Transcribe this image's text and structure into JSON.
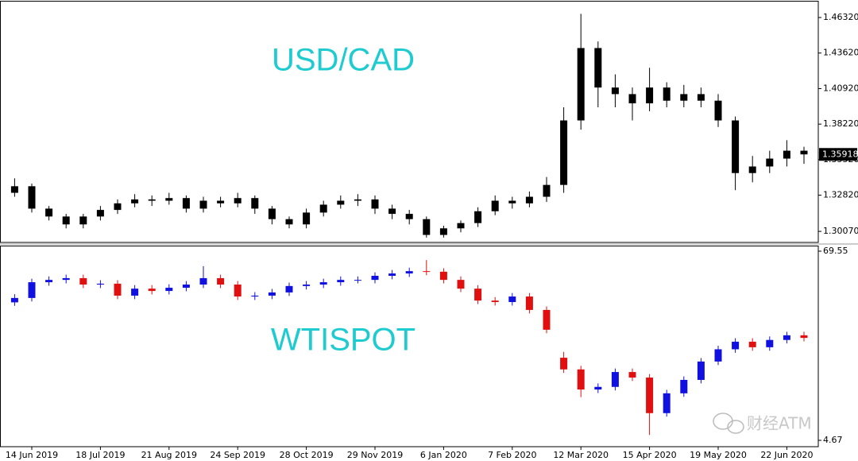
{
  "chart_data": {
    "type": "candlestick",
    "categories": [
      null,
      "14 Jun 2019",
      null,
      null,
      null,
      "18 Jul 2019",
      null,
      null,
      null,
      "21 Aug 2019",
      null,
      null,
      null,
      "24 Sep 2019",
      null,
      null,
      null,
      "28 Oct 2019",
      null,
      null,
      null,
      "29 Nov 2019",
      null,
      null,
      null,
      "6 Jan 2020",
      null,
      null,
      null,
      "7 Feb 2020",
      null,
      null,
      null,
      "12 Mar 2020",
      null,
      null,
      null,
      "15 Apr 2020",
      null,
      null,
      null,
      "19 May 2020",
      null,
      null,
      null,
      "22 Jun 2020",
      null
    ],
    "watermark": "财经ATM",
    "panels": [
      {
        "title": "USD/CAD",
        "title_color": "#1ecbd0",
        "up_color": "#000000",
        "down_color": "#000000",
        "ylim": [
          1.2923,
          1.4753
        ],
        "yticks": [
          {
            "value": 1.4632,
            "label": "1.46320"
          },
          {
            "value": 1.4362,
            "label": "1.43620"
          },
          {
            "value": 1.4092,
            "label": "1.40920"
          },
          {
            "value": 1.3822,
            "label": "1.38220"
          },
          {
            "value": 1.3552,
            "label": "1.35520"
          },
          {
            "value": 1.3282,
            "label": "1.32820"
          },
          {
            "value": 1.3007,
            "label": "1.30070"
          }
        ],
        "price_label": {
          "value": 1.35918,
          "label": "1.35918"
        },
        "open": [
          1.33,
          1.335,
          1.318,
          1.312,
          1.306,
          1.312,
          1.317,
          1.322,
          1.325,
          1.324,
          1.326,
          1.318,
          1.324,
          1.322,
          1.326,
          1.318,
          1.31,
          1.306,
          1.315,
          1.321,
          1.324,
          1.325,
          1.318,
          1.314,
          1.31,
          1.298,
          1.303,
          1.307,
          1.316,
          1.324,
          1.322,
          1.327,
          1.336,
          1.385,
          1.44,
          1.41,
          1.405,
          1.398,
          1.41,
          1.4,
          1.405,
          1.4,
          1.385,
          1.345,
          1.35,
          1.356,
          1.362
        ],
        "high": [
          1.341,
          1.337,
          1.32,
          1.314,
          1.314,
          1.32,
          1.325,
          1.329,
          1.328,
          1.33,
          1.328,
          1.327,
          1.327,
          1.33,
          1.328,
          1.32,
          1.312,
          1.318,
          1.324,
          1.328,
          1.329,
          1.328,
          1.321,
          1.317,
          1.312,
          1.305,
          1.309,
          1.319,
          1.328,
          1.327,
          1.331,
          1.342,
          1.395,
          1.466,
          1.445,
          1.42,
          1.41,
          1.425,
          1.414,
          1.412,
          1.41,
          1.405,
          1.388,
          1.358,
          1.362,
          1.37,
          1.365
        ],
        "low": [
          1.327,
          1.315,
          1.309,
          1.303,
          1.303,
          1.309,
          1.314,
          1.319,
          1.32,
          1.321,
          1.315,
          1.315,
          1.319,
          1.319,
          1.314,
          1.306,
          1.303,
          1.303,
          1.312,
          1.318,
          1.32,
          1.314,
          1.31,
          1.306,
          1.296,
          1.296,
          1.3,
          1.304,
          1.313,
          1.318,
          1.319,
          1.323,
          1.33,
          1.378,
          1.395,
          1.395,
          1.385,
          1.392,
          1.395,
          1.395,
          1.395,
          1.38,
          1.332,
          1.338,
          1.345,
          1.35,
          1.352
        ],
        "close": [
          1.335,
          1.318,
          1.312,
          1.306,
          1.312,
          1.317,
          1.322,
          1.325,
          1.324,
          1.326,
          1.318,
          1.324,
          1.322,
          1.326,
          1.318,
          1.31,
          1.306,
          1.315,
          1.321,
          1.324,
          1.325,
          1.318,
          1.314,
          1.31,
          1.298,
          1.303,
          1.307,
          1.316,
          1.324,
          1.322,
          1.327,
          1.336,
          1.385,
          1.44,
          1.41,
          1.405,
          1.398,
          1.41,
          1.4,
          1.405,
          1.4,
          1.385,
          1.345,
          1.35,
          1.356,
          1.362,
          1.3592
        ]
      },
      {
        "title": "WTISPOT",
        "title_color": "#1ecbd0",
        "up_color": "#1010e0",
        "down_color": "#e01010",
        "ylim": [
          2.49,
          71.46
        ],
        "yticks": [
          69.55,
          4.67
        ],
        "open": [
          52.0,
          53.5,
          58.9,
          59.7,
          60.3,
          58.1,
          58.4,
          54.3,
          56.7,
          55.9,
          57.0,
          58.1,
          60.3,
          58.1,
          54.0,
          54.3,
          55.4,
          57.6,
          58.1,
          58.9,
          59.7,
          59.7,
          61.1,
          61.9,
          62.7,
          62.5,
          59.7,
          56.7,
          52.6,
          52.1,
          54.0,
          49.4,
          33.0,
          29.0,
          22.1,
          23.0,
          28.1,
          26.2,
          14.0,
          20.8,
          25.4,
          31.7,
          35.9,
          38.5,
          36.6,
          39.1,
          40.7
        ],
        "high": [
          54.8,
          60.1,
          60.9,
          61.5,
          61.5,
          59.6,
          59.6,
          57.9,
          57.9,
          58.2,
          59.3,
          64.4,
          61.5,
          59.3,
          55.5,
          56.6,
          58.8,
          59.3,
          60.1,
          60.9,
          60.9,
          62.3,
          63.1,
          63.9,
          66.5,
          63.7,
          60.9,
          57.9,
          53.8,
          55.2,
          55.2,
          50.6,
          35.0,
          30.2,
          24.2,
          29.3,
          29.3,
          27.4,
          22.0,
          26.6,
          32.9,
          37.1,
          39.7,
          39.7,
          40.3,
          41.9,
          41.9
        ],
        "low": [
          50.8,
          52.3,
          57.7,
          58.5,
          56.9,
          56.9,
          53.1,
          53.1,
          54.7,
          54.7,
          55.8,
          56.9,
          56.9,
          52.8,
          52.8,
          53.1,
          54.2,
          56.4,
          56.9,
          57.7,
          58.5,
          58.5,
          59.9,
          60.7,
          61.3,
          58.5,
          55.5,
          51.4,
          50.9,
          50.9,
          48.2,
          41.4,
          27.8,
          19.5,
          20.9,
          21.8,
          25.0,
          6.5,
          12.8,
          19.6,
          24.2,
          30.5,
          34.7,
          35.4,
          35.4,
          37.9,
          38.6
        ],
        "close": [
          53.5,
          58.9,
          59.7,
          60.3,
          58.1,
          58.4,
          54.3,
          56.7,
          55.9,
          57.0,
          58.1,
          60.3,
          58.1,
          54.0,
          54.3,
          55.4,
          57.6,
          58.1,
          58.9,
          59.7,
          59.7,
          61.1,
          61.9,
          62.7,
          62.5,
          59.7,
          56.7,
          52.6,
          52.1,
          54.0,
          49.4,
          42.6,
          29.0,
          22.1,
          23.0,
          28.1,
          26.2,
          14.0,
          20.8,
          25.4,
          31.7,
          35.9,
          38.5,
          36.6,
          39.1,
          40.7,
          39.8
        ]
      }
    ]
  }
}
